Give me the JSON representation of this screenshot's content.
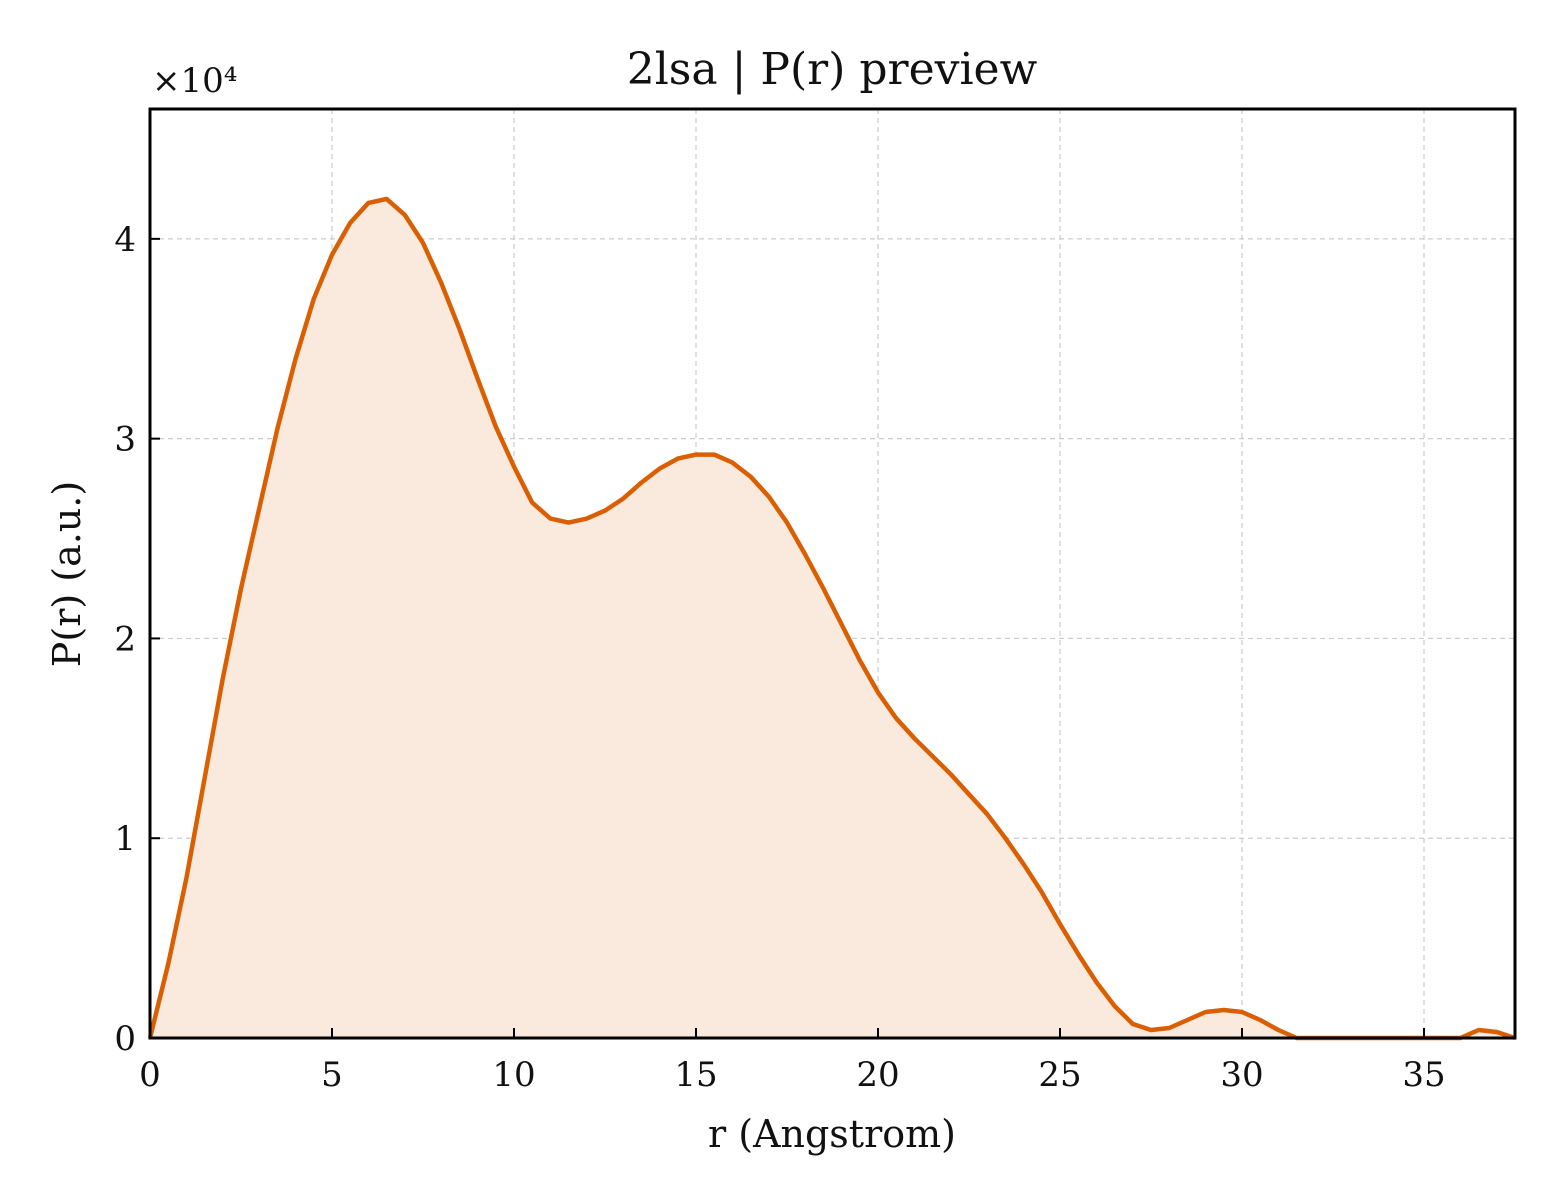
{
  "chart_data": {
    "type": "area",
    "title": "2lsa | P(r) preview",
    "xlabel": "r (Angstrom)",
    "ylabel": "P(r) (a.u.)",
    "y_multiplier": "×10⁴",
    "xlim": [
      0,
      37.5
    ],
    "ylim": [
      0,
      4.65
    ],
    "xticks": [
      0,
      5,
      10,
      15,
      20,
      25,
      30,
      35
    ],
    "xtick_labels": [
      "0",
      "5",
      "10",
      "15",
      "20",
      "25",
      "30",
      "35"
    ],
    "yticks": [
      0,
      1,
      2,
      3,
      4
    ],
    "ytick_labels": [
      "0",
      "1",
      "2",
      "3",
      "4"
    ],
    "grid": true,
    "legend": "none",
    "series": [
      {
        "color": "#d95f02",
        "fill_color": "#fae9dd",
        "x": [
          0,
          0.5,
          1.0,
          1.5,
          2.0,
          2.5,
          3.0,
          3.5,
          4.0,
          4.5,
          5.0,
          5.5,
          6.0,
          6.5,
          7.0,
          7.5,
          8.0,
          8.5,
          9.0,
          9.5,
          10.0,
          10.5,
          11.0,
          11.5,
          12.0,
          12.5,
          13.0,
          13.5,
          14.0,
          14.5,
          15.0,
          15.5,
          16.0,
          16.5,
          17.0,
          17.5,
          18.0,
          18.5,
          19.0,
          19.5,
          20.0,
          20.5,
          21.0,
          21.5,
          22.0,
          22.5,
          23.0,
          23.5,
          24.0,
          24.5,
          25.0,
          25.5,
          26.0,
          26.5,
          27.0,
          27.5,
          28.0,
          28.5,
          29.0,
          29.5,
          30.0,
          30.5,
          31.0,
          31.5,
          32.0,
          32.5,
          33.0,
          33.5,
          34.0,
          34.5,
          35.0,
          35.5,
          36.0,
          36.5,
          37.0,
          37.5
        ],
        "y": [
          0.0,
          0.37,
          0.8,
          1.3,
          1.8,
          2.25,
          2.65,
          3.05,
          3.4,
          3.7,
          3.92,
          4.08,
          4.18,
          4.2,
          4.12,
          3.98,
          3.78,
          3.55,
          3.3,
          3.06,
          2.86,
          2.68,
          2.6,
          2.58,
          2.6,
          2.64,
          2.7,
          2.78,
          2.85,
          2.9,
          2.92,
          2.92,
          2.88,
          2.81,
          2.71,
          2.58,
          2.42,
          2.25,
          2.07,
          1.89,
          1.73,
          1.6,
          1.5,
          1.41,
          1.32,
          1.22,
          1.12,
          1.0,
          0.87,
          0.73,
          0.57,
          0.42,
          0.28,
          0.16,
          0.07,
          0.04,
          0.05,
          0.09,
          0.13,
          0.14,
          0.13,
          0.09,
          0.04,
          0.0,
          0.0,
          0.0,
          0.0,
          0.0,
          0.0,
          0.0,
          0.0,
          0.0,
          0.0,
          0.04,
          0.03,
          0.0
        ]
      }
    ]
  }
}
